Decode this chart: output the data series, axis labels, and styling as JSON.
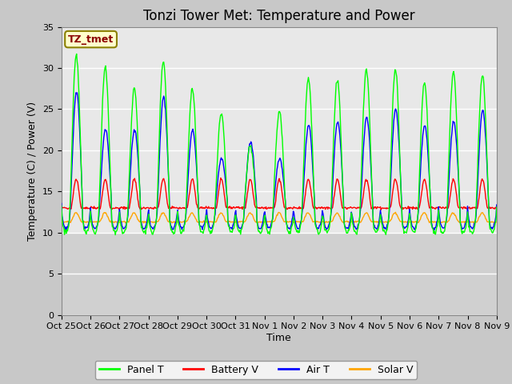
{
  "title": "Tonzi Tower Met: Temperature and Power",
  "xlabel": "Time",
  "ylabel": "Temperature (C) / Power (V)",
  "ylim": [
    0,
    35
  ],
  "yticks": [
    0,
    5,
    10,
    15,
    20,
    25,
    30,
    35
  ],
  "x_tick_labels": [
    "Oct 25",
    "Oct 26",
    "Oct 27",
    "Oct 28",
    "Oct 29",
    "Oct 30",
    "Oct 31",
    "Nov 1",
    "Nov 2",
    "Nov 3",
    "Nov 4",
    "Nov 5",
    "Nov 6",
    "Nov 7",
    "Nov 8",
    "Nov 9"
  ],
  "annotation_text": "TZ_tmet",
  "annotation_color": "#8B0000",
  "annotation_bg": "#FFFFCC",
  "annotation_edge": "#8B8000",
  "fig_bg": "#C8C8C8",
  "plot_bg_upper": "#E8E8E8",
  "plot_bg_lower": "#D0D0D0",
  "grid_color": "#BEBEBE",
  "line_colors": {
    "panel": "#00FF00",
    "battery": "#FF0000",
    "air": "#0000FF",
    "solar": "#FFA500"
  },
  "legend_labels": [
    "Panel T",
    "Battery V",
    "Air T",
    "Solar V"
  ],
  "title_fontsize": 12,
  "label_fontsize": 9,
  "tick_fontsize": 8
}
